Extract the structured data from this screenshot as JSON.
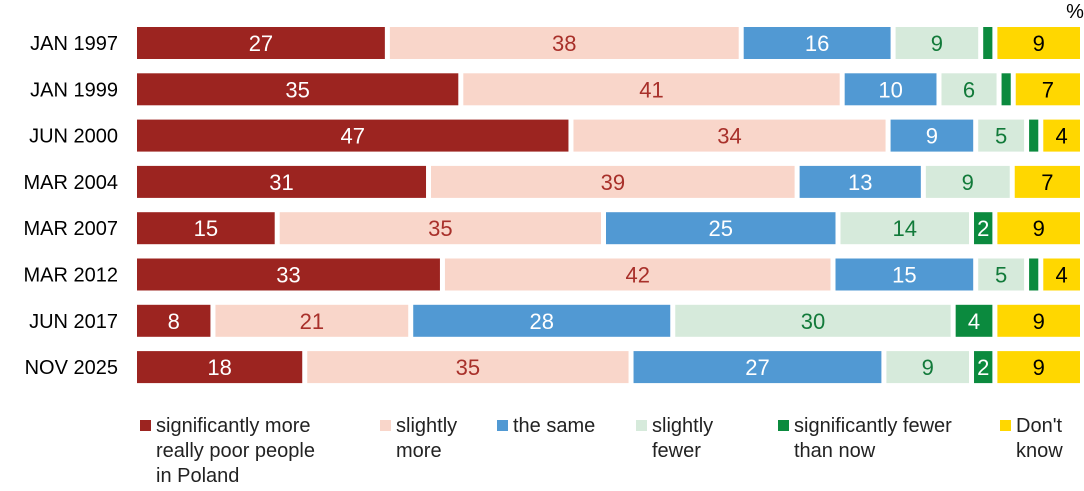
{
  "chart_data": {
    "type": "bar",
    "orientation": "horizontal",
    "stacked": true,
    "unit_label": "%",
    "categories": [
      "JAN 1997",
      "JAN 1999",
      "JUN 2000",
      "MAR 2004",
      "MAR 2007",
      "MAR 2012",
      "JUN 2017",
      "NOV 2025"
    ],
    "series": [
      {
        "name": "significantly more really poor people in Poland",
        "legend_lines": [
          "significantly more",
          "really poor people",
          "in Poland"
        ],
        "color": "#9c2420",
        "label_color": "#ffffff",
        "values": [
          27,
          35,
          47,
          31,
          15,
          33,
          8,
          18
        ]
      },
      {
        "name": "slightly more",
        "legend_lines": [
          "slightly",
          "more"
        ],
        "color": "#f9d6ca",
        "label_color": "#a8302a",
        "values": [
          38,
          41,
          34,
          39,
          35,
          42,
          21,
          35
        ]
      },
      {
        "name": "the same",
        "legend_lines": [
          "the same"
        ],
        "color": "#5199d3",
        "label_color": "#ffffff",
        "values": [
          16,
          10,
          9,
          13,
          25,
          15,
          28,
          27
        ]
      },
      {
        "name": "slightly fewer",
        "legend_lines": [
          "slightly",
          "fewer"
        ],
        "color": "#d6eadb",
        "label_color": "#127a3a",
        "values": [
          9,
          6,
          5,
          9,
          14,
          5,
          30,
          9
        ]
      },
      {
        "name": "significantly fewer than now",
        "legend_lines": [
          "significantly fewer",
          "than now"
        ],
        "color": "#0b8a3e",
        "label_color": "#ffffff",
        "values": [
          1,
          1,
          1,
          0,
          2,
          1,
          4,
          2
        ]
      },
      {
        "name": "Don't know",
        "legend_lines": [
          "Don't",
          "know"
        ],
        "color": "#ffd700",
        "label_color": "#000000",
        "values": [
          9,
          7,
          4,
          7,
          9,
          4,
          9,
          9
        ]
      }
    ],
    "xlim": [
      0,
      100
    ],
    "grid": false,
    "legend_position": "bottom",
    "data_labels_hidden_below": 2
  }
}
